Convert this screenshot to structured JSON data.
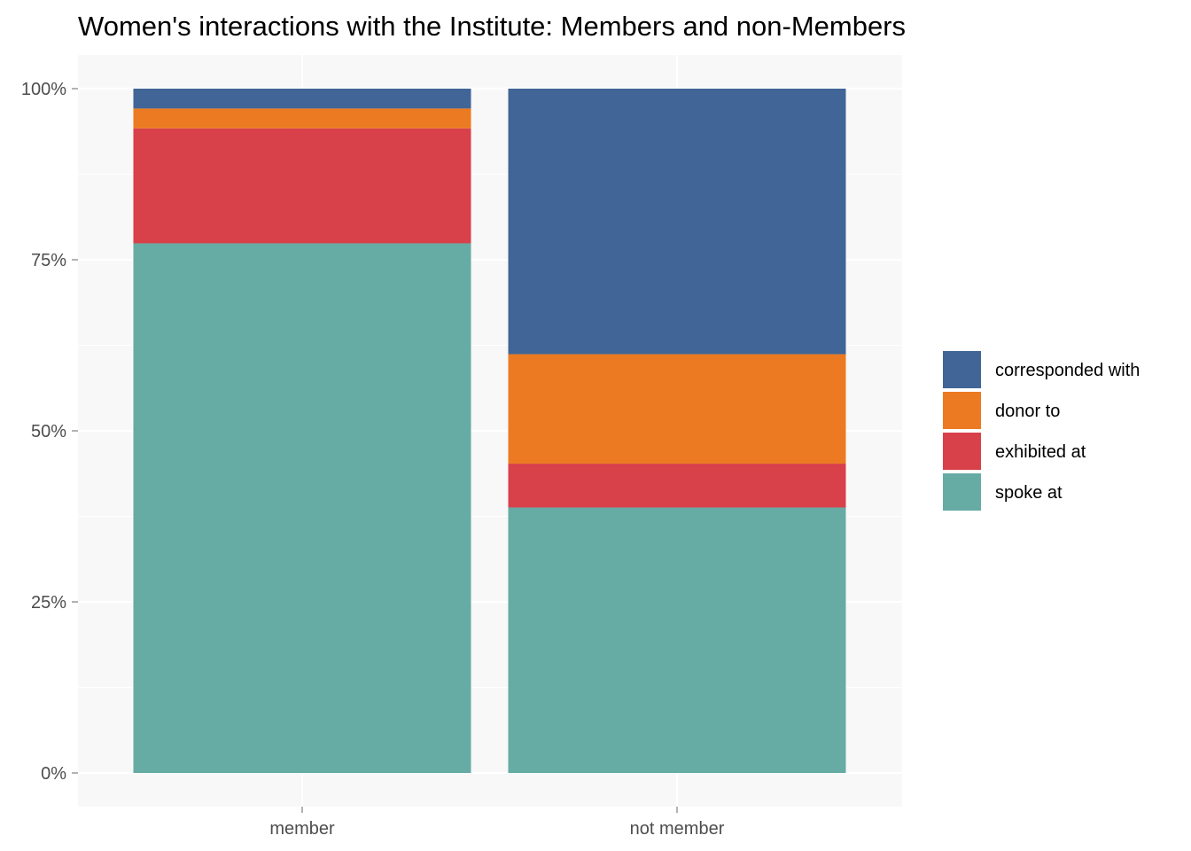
{
  "chart_data": {
    "type": "bar",
    "stacked": true,
    "normalized": true,
    "title": "Women's interactions with the Institute: Members and non-Members",
    "xlabel": "",
    "ylabel": "",
    "categories": [
      "member",
      "not member"
    ],
    "y_ticks": [
      "0%",
      "25%",
      "50%",
      "75%",
      "100%"
    ],
    "ylim": [
      0,
      1
    ],
    "grid": true,
    "legend_position": "right",
    "series": [
      {
        "name": "spoke at",
        "color": "#66aba4",
        "values": [
          0.774,
          0.388
        ]
      },
      {
        "name": "exhibited at",
        "color": "#d8404a",
        "values": [
          0.168,
          0.064
        ]
      },
      {
        "name": "donor to",
        "color": "#eb7a22",
        "values": [
          0.029,
          0.16
        ]
      },
      {
        "name": "corresponded with",
        "color": "#406596",
        "values": [
          0.029,
          0.388
        ]
      }
    ],
    "legend_order": [
      "corresponded with",
      "donor to",
      "exhibited at",
      "spoke at"
    ]
  }
}
